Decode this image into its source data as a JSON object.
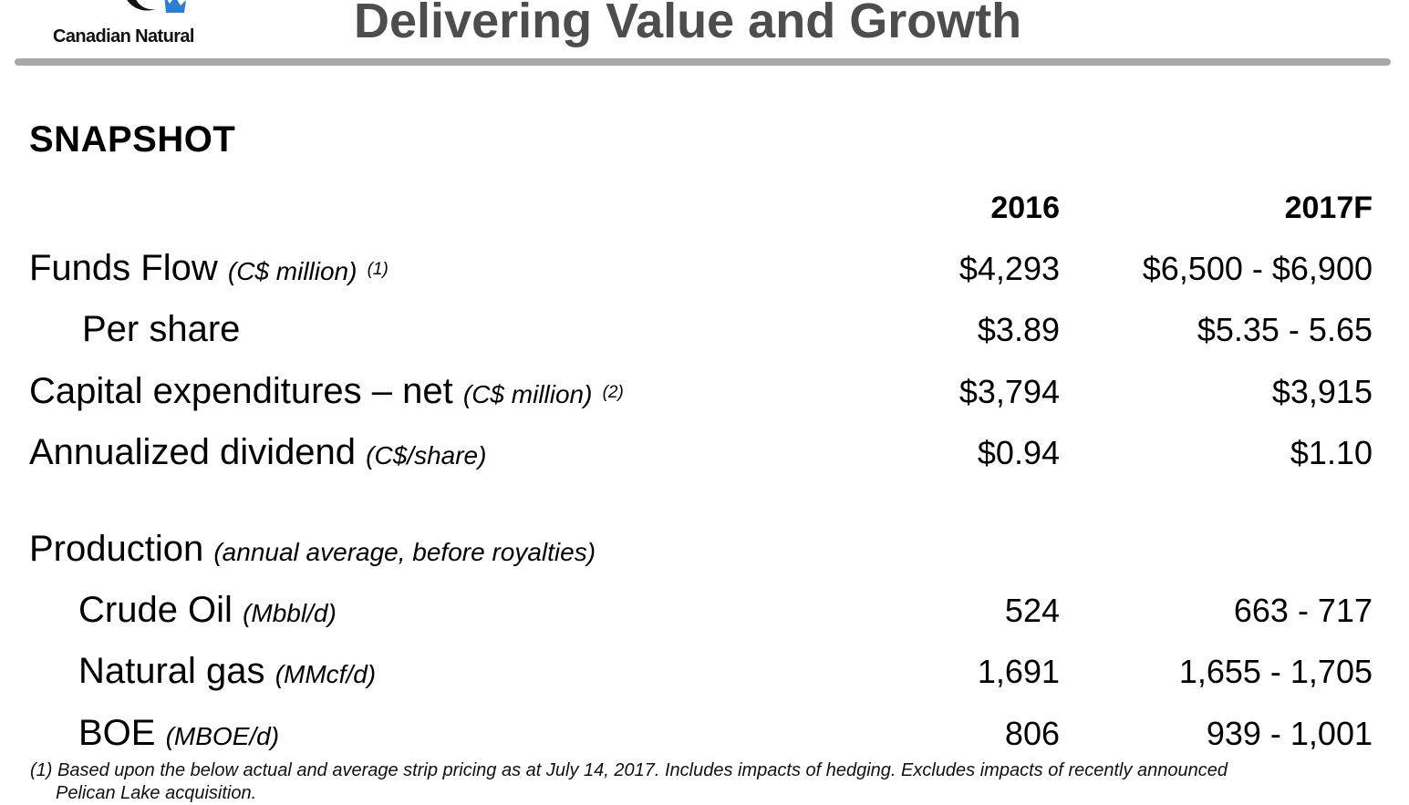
{
  "header": {
    "logo_text": "Canadian Natural",
    "title": "Delivering Value and Growth"
  },
  "section_title": "SNAPSHOT",
  "columns": {
    "c2016": "2016",
    "c2017": "2017F"
  },
  "rows": [
    {
      "label": "Funds Flow",
      "unit": "(C$ million)",
      "note": "(1)",
      "v2016": "$4,293",
      "v2017": "$6,500 - $6,900"
    },
    {
      "label": "Per share",
      "unit": "",
      "note": "",
      "v2016": "$3.89",
      "v2017": "$5.35 - 5.65"
    },
    {
      "label": "Capital expenditures – net",
      "unit": "(C$ million)",
      "note": "(2)",
      "v2016": "$3,794",
      "v2017": "$3,915"
    },
    {
      "label": "Annualized dividend",
      "unit": "(C$/share)",
      "note": "",
      "v2016": "$0.94",
      "v2017": "$1.10"
    }
  ],
  "production": {
    "label": "Production",
    "unit": "(annual average, before royalties)",
    "rows": [
      {
        "label": "Crude Oil",
        "unit": "(Mbbl/d)",
        "v2016": "524",
        "v2017": "663 - 717"
      },
      {
        "label": "Natural gas",
        "unit": "(MMcf/d)",
        "v2016": "1,691",
        "v2017": "1,655 - 1,705"
      },
      {
        "label": "BOE",
        "unit": "(MBOE/d)",
        "v2016": "806",
        "v2017": "939 - 1,001"
      }
    ]
  },
  "footnote": {
    "line1": "(1) Based upon the below actual and average strip pricing as at July 14, 2017. Includes impacts of hedging. Excludes impacts of recently announced",
    "line2": "Pelican Lake acquisition."
  },
  "colors": {
    "title": "#4d4d4d",
    "rule": "#a8a8a8",
    "logo_blue": "#2a7fd4"
  },
  "icons": {
    "logo": "canadian-natural-logo-icon"
  }
}
